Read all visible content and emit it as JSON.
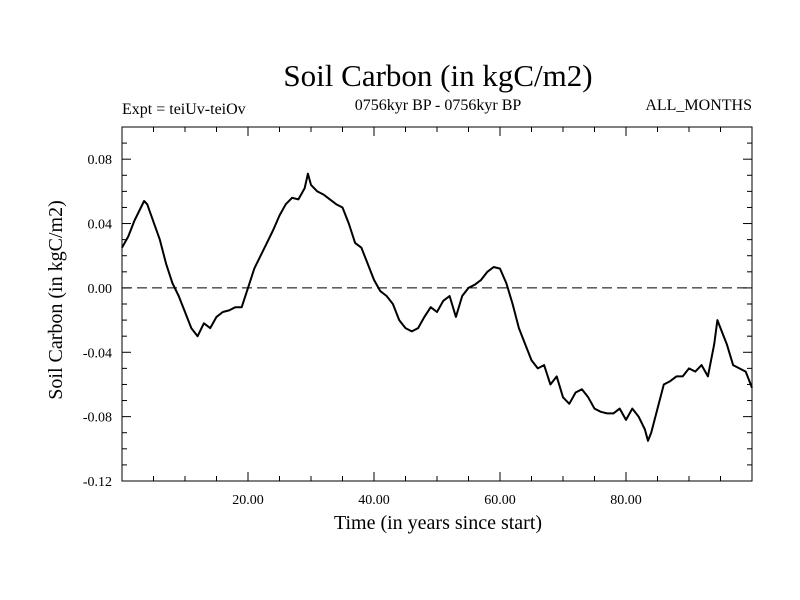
{
  "chart_data": {
    "type": "line",
    "title": "Soil Carbon (in kgC/m2)",
    "subtitle_left": "Expt = teiUv-teiOv",
    "subtitle_center": "0756kyr BP - 0756kyr BP",
    "subtitle_right": "ALL_MONTHS",
    "xlabel": "Time (in years since start)",
    "ylabel": "Soil Carbon (in kgC/m2)",
    "xlim": [
      0,
      100
    ],
    "ylim": [
      -0.12,
      0.1
    ],
    "x_ticks": [
      20,
      40,
      60,
      80
    ],
    "x_tick_labels": [
      "20.00",
      "40.00",
      "60.00",
      "80.00"
    ],
    "y_ticks": [
      -0.12,
      -0.08,
      -0.04,
      0.0,
      0.04,
      0.08
    ],
    "y_tick_labels": [
      "-0.12",
      "-0.08",
      "-0.04",
      "0.00",
      "0.04",
      "0.08"
    ],
    "reference_line": 0.0,
    "series": [
      {
        "color": "#000000",
        "x": [
          0,
          1,
          2,
          3,
          3.5,
          4,
          5,
          6,
          7,
          8,
          9,
          10,
          11,
          12,
          13,
          14,
          15,
          16,
          17,
          18,
          19,
          20,
          21,
          22,
          23,
          24,
          25,
          26,
          27,
          28,
          29,
          29.5,
          30,
          31,
          32,
          33,
          34,
          35,
          36,
          37,
          38,
          39,
          40,
          41,
          42,
          43,
          44,
          45,
          46,
          47,
          48,
          49,
          50,
          51,
          52,
          53,
          54,
          55,
          56,
          57,
          58,
          59,
          60,
          61,
          62,
          63,
          64,
          65,
          66,
          67,
          68,
          69,
          70,
          71,
          72,
          73,
          74,
          75,
          76,
          77,
          78,
          79,
          80,
          81,
          82,
          83,
          83.5,
          84,
          85,
          86,
          87,
          88,
          89,
          90,
          91,
          92,
          93,
          94,
          94.5,
          95,
          96,
          97,
          98,
          99,
          100
        ],
        "y": [
          0.025,
          0.032,
          0.042,
          0.05,
          0.054,
          0.052,
          0.041,
          0.03,
          0.015,
          0.003,
          -0.005,
          -0.015,
          -0.025,
          -0.03,
          -0.022,
          -0.025,
          -0.018,
          -0.015,
          -0.014,
          -0.012,
          -0.012,
          0.0,
          0.012,
          0.02,
          0.028,
          0.036,
          0.045,
          0.052,
          0.056,
          0.055,
          0.062,
          0.071,
          0.064,
          0.06,
          0.058,
          0.055,
          0.052,
          0.05,
          0.04,
          0.028,
          0.025,
          0.015,
          0.005,
          -0.002,
          -0.005,
          -0.01,
          -0.02,
          -0.025,
          -0.027,
          -0.025,
          -0.018,
          -0.012,
          -0.015,
          -0.008,
          -0.005,
          -0.018,
          -0.005,
          0.0,
          0.002,
          0.005,
          0.01,
          0.013,
          0.012,
          0.003,
          -0.01,
          -0.025,
          -0.035,
          -0.045,
          -0.05,
          -0.048,
          -0.06,
          -0.055,
          -0.068,
          -0.072,
          -0.065,
          -0.063,
          -0.068,
          -0.075,
          -0.077,
          -0.078,
          -0.078,
          -0.075,
          -0.082,
          -0.075,
          -0.08,
          -0.088,
          -0.095,
          -0.09,
          -0.075,
          -0.06,
          -0.058,
          -0.055,
          -0.055,
          -0.05,
          -0.052,
          -0.048,
          -0.055,
          -0.035,
          -0.02,
          -0.025,
          -0.035,
          -0.048,
          -0.05,
          -0.052,
          -0.062
        ]
      }
    ]
  }
}
